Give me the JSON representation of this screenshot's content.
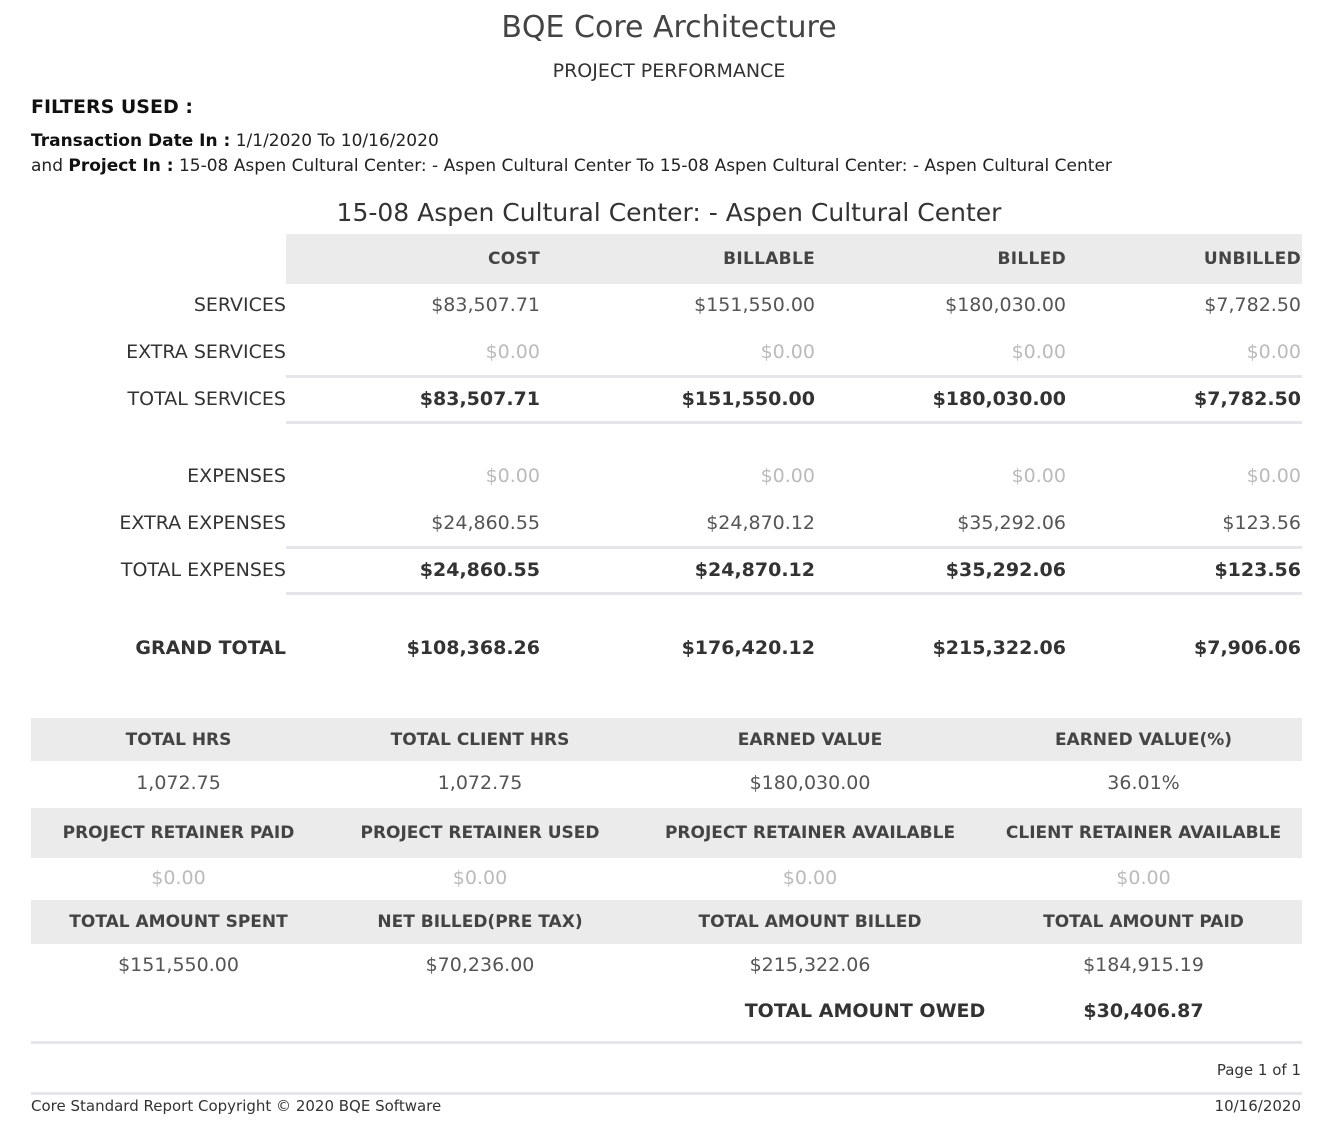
{
  "header": {
    "company": "BQE Core Architecture",
    "report_title": "PROJECT PERFORMANCE"
  },
  "filters": {
    "heading": "FILTERS USED :",
    "transaction_label": "Transaction Date In :",
    "transaction_value": " 1/1/2020 To 10/16/2020",
    "and_text": "and ",
    "project_label": "Project In :",
    "project_value": " 15-08 Aspen Cultural Center: - Aspen Cultural Center To 15-08 Aspen Cultural Center: - Aspen Cultural Center"
  },
  "project": {
    "name": "15-08 Aspen Cultural Center: - Aspen Cultural Center"
  },
  "summary": {
    "columns": [
      "COST",
      "BILLABLE",
      "BILLED",
      "UNBILLED"
    ],
    "rows": [
      {
        "label": "SERVICES",
        "values": [
          "$83,507.71",
          "$151,550.00",
          "$180,030.00",
          "$7,782.50"
        ]
      },
      {
        "label": "EXTRA SERVICES",
        "values": [
          "$0.00",
          "$0.00",
          "$0.00",
          "$0.00"
        ]
      },
      {
        "label": "TOTAL SERVICES",
        "values": [
          "$83,507.71",
          "$151,550.00",
          "$180,030.00",
          "$7,782.50"
        ]
      },
      {
        "label": "EXPENSES",
        "values": [
          "$0.00",
          "$0.00",
          "$0.00",
          "$0.00"
        ]
      },
      {
        "label": "EXTRA EXPENSES",
        "values": [
          "$24,860.55",
          "$24,870.12",
          "$35,292.06",
          "$123.56"
        ]
      },
      {
        "label": "TOTAL EXPENSES",
        "values": [
          "$24,860.55",
          "$24,870.12",
          "$35,292.06",
          "$123.56"
        ]
      },
      {
        "label": "GRAND TOTAL",
        "values": [
          "$108,368.26",
          "$176,420.12",
          "$215,322.06",
          "$7,906.06"
        ]
      }
    ]
  },
  "stats": {
    "row1": {
      "labels": [
        "TOTAL HRS",
        "TOTAL CLIENT HRS",
        "EARNED VALUE",
        "EARNED VALUE(%)"
      ],
      "values": [
        "1,072.75",
        "1,072.75",
        "$180,030.00",
        "36.01%"
      ]
    },
    "row2": {
      "labels": [
        "PROJECT RETAINER PAID",
        "PROJECT RETAINER USED",
        "PROJECT RETAINER AVAILABLE",
        "CLIENT RETAINER AVAILABLE"
      ],
      "values": [
        "$0.00",
        "$0.00",
        "$0.00",
        "$0.00"
      ]
    },
    "row3": {
      "labels": [
        "TOTAL AMOUNT SPENT",
        "NET BILLED(PRE TAX)",
        "TOTAL AMOUNT BILLED",
        "TOTAL AMOUNT PAID"
      ],
      "values": [
        "$151,550.00",
        "$70,236.00",
        "$215,322.06",
        "$184,915.19"
      ]
    },
    "owed_label": "TOTAL AMOUNT OWED",
    "owed_value": "$30,406.87"
  },
  "footer": {
    "page": "Page 1 of 1",
    "copyright": "Core Standard Report Copyright © 2020 BQE Software",
    "date": "10/16/2020"
  }
}
